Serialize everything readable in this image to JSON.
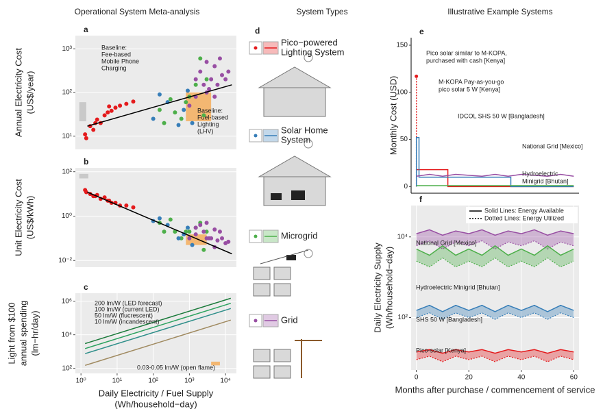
{
  "headers": [
    "Operational System Meta-analysis",
    "System Types",
    "Illustrative Example Systems"
  ],
  "system_types": {
    "panel": "d",
    "items": [
      {
        "label": [
          "Pico−powered",
          "Lighting System"
        ],
        "color": "#e41a1c"
      },
      {
        "label": [
          "Solar Home",
          "System"
        ],
        "color": "#377eb8"
      },
      {
        "label": [
          "Microgrid"
        ],
        "color": "#4daf4a"
      },
      {
        "label": [
          "Grid"
        ],
        "color": "#984ea3"
      }
    ]
  },
  "chart_data": [
    {
      "panel": "a",
      "type": "scatter",
      "ylabel": [
        "Annual Electricity Cost",
        "(US$/year)"
      ],
      "xscale": "log",
      "yscale": "log",
      "xlim": [
        0.7,
        20000
      ],
      "ylim": [
        5,
        2000
      ],
      "yticks": [
        {
          "value": 10,
          "label": "10¹"
        },
        {
          "value": 100,
          "label": "10²"
        },
        {
          "value": 1000,
          "label": "10³"
        }
      ],
      "grid": true,
      "background": "#ebebeb",
      "series": [
        {
          "color": "#e41a1c",
          "x": [
            1.3,
            1.4,
            1.8,
            2.2,
            2.8,
            3.5,
            4.5,
            5.5,
            7,
            9,
            12,
            18,
            28,
            2.5,
            6
          ],
          "values": [
            11,
            9,
            17,
            14,
            24,
            20,
            30,
            35,
            38,
            45,
            50,
            55,
            62,
            20,
            48
          ]
        },
        {
          "color": "#4daf4a",
          "x": [
            150,
            200,
            300,
            400,
            600,
            800,
            1000,
            1500,
            2000,
            3000,
            2500
          ],
          "values": [
            40,
            20,
            70,
            35,
            25,
            60,
            80,
            150,
            600,
            200,
            30
          ]
        },
        {
          "color": "#377eb8",
          "x": [
            100,
            150,
            250,
            500,
            700,
            1200,
            900
          ],
          "values": [
            25,
            90,
            60,
            18,
            40,
            20,
            110
          ]
        },
        {
          "color": "#984ea3",
          "x": [
            1000,
            1500,
            2000,
            2500,
            3000,
            3500,
            4000,
            5000,
            6000,
            7000,
            8000,
            10000,
            12000,
            3000,
            5000,
            1500
          ],
          "values": [
            50,
            80,
            300,
            150,
            500,
            120,
            200,
            400,
            150,
            600,
            250,
            200,
            300,
            100,
            80,
            200
          ]
        }
      ],
      "fit": {
        "color": "#000000",
        "x": [
          1.5,
          15000
        ],
        "values": [
          17,
          150
        ]
      },
      "regions": [
        {
          "color": "#bdbdbd",
          "x": [
            0.9,
            1.4
          ],
          "y": [
            22,
            60
          ]
        },
        {
          "color": "#f5a54a",
          "x": [
            800,
            4000
          ],
          "y": [
            22,
            100
          ]
        }
      ],
      "annotations": [
        {
          "color": "#000000",
          "lines": [
            "Baseline:",
            "Fee-based",
            "Mobile Phone",
            "Charging"
          ]
        },
        {
          "color": "#f08c1e",
          "lines": [
            "Baseline:",
            "Fuel-based",
            "Lighting",
            "(LHV)"
          ]
        }
      ]
    },
    {
      "panel": "b",
      "type": "scatter",
      "ylabel": [
        "Unit Electricity Cost",
        "(US$/kWh)"
      ],
      "xscale": "log",
      "yscale": "log",
      "xlim": [
        0.7,
        20000
      ],
      "ylim": [
        0.005,
        150
      ],
      "yticks": [
        {
          "value": 0.01,
          "label": "10⁻²"
        },
        {
          "value": 1,
          "label": "10⁰"
        },
        {
          "value": 100,
          "label": "10²"
        }
      ],
      "grid": true,
      "background": "#ebebeb",
      "series": [
        {
          "color": "#e41a1c",
          "x": [
            1.3,
            1.4,
            1.8,
            2.2,
            2.8,
            3.5,
            4.5,
            5.5,
            7,
            9,
            12,
            18,
            28,
            2.5,
            6
          ],
          "values": [
            15,
            12,
            10,
            8,
            9,
            6,
            7,
            5,
            4,
            4,
            3,
            3,
            2.5,
            8,
            5
          ]
        },
        {
          "color": "#4daf4a",
          "x": [
            150,
            200,
            300,
            400,
            600,
            800,
            1000,
            1500,
            2000,
            3000,
            2500
          ],
          "values": [
            0.5,
            0.2,
            0.7,
            0.2,
            0.1,
            0.2,
            0.2,
            0.3,
            0.5,
            0.2,
            0.03
          ]
        },
        {
          "color": "#377eb8",
          "x": [
            100,
            150,
            250,
            500,
            700,
            1200,
            900
          ],
          "values": [
            0.6,
            0.8,
            0.4,
            0.1,
            0.15,
            0.05,
            0.3
          ]
        },
        {
          "color": "#984ea3",
          "x": [
            1000,
            1500,
            2000,
            2500,
            3000,
            3500,
            4000,
            5000,
            6000,
            7000,
            8000,
            10000,
            12000,
            3000,
            5000,
            1500
          ],
          "values": [
            0.1,
            0.15,
            0.4,
            0.2,
            0.5,
            0.1,
            0.1,
            0.25,
            0.08,
            0.2,
            0.1,
            0.06,
            0.07,
            0.1,
            0.04,
            0.3
          ]
        }
      ],
      "fit": {
        "color": "#000000",
        "x": [
          1.5,
          15000
        ],
        "values": [
          12,
          0.02
        ]
      },
      "regions": [
        {
          "color": "#bdbdbd",
          "x": [
            0.9,
            1.6
          ],
          "y": [
            50,
            80
          ]
        },
        {
          "color": "#f5a54a",
          "x": [
            800,
            3000
          ],
          "y": [
            0.05,
            0.15
          ]
        }
      ]
    },
    {
      "panel": "c",
      "type": "line",
      "ylabel": [
        "Light from $100",
        "annual spending",
        "(lm−hr/day)"
      ],
      "xlabel": [
        "Daily Electricity / Fuel Supply",
        "(Wh/household−day)"
      ],
      "xscale": "log",
      "yscale": "log",
      "xlim": [
        0.7,
        20000
      ],
      "ylim": [
        50,
        3000000
      ],
      "xticks": [
        {
          "value": 1,
          "label": "10⁰"
        },
        {
          "value": 10,
          "label": "10¹"
        },
        {
          "value": 100,
          "label": "10²"
        },
        {
          "value": 1000,
          "label": "10³"
        },
        {
          "value": 10000,
          "label": "10⁴"
        }
      ],
      "yticks": [
        {
          "value": 100,
          "label": "10²"
        },
        {
          "value": 10000,
          "label": "10⁴"
        },
        {
          "value": 1000000,
          "label": "10⁶"
        }
      ],
      "grid": true,
      "background": "#ebebeb",
      "series": [
        {
          "name": "200 lm/W (LED forecast)",
          "color": "#1a7a3a",
          "x": [
            1.3,
            14000
          ],
          "values": [
            3000,
            1500000
          ]
        },
        {
          "name": "100 lm/W (current LED)",
          "color": "#2ca25f",
          "x": [
            1.3,
            14000
          ],
          "values": [
            1500,
            750000
          ]
        },
        {
          "name": "50 lm/W (flucrescent)",
          "color": "#2f8f8a",
          "x": [
            1.3,
            14000
          ],
          "values": [
            750,
            370000
          ]
        },
        {
          "name": "10 lm/W (incandescent)",
          "color": "#a08a60",
          "x": [
            1.3,
            14000
          ],
          "values": [
            150,
            75000
          ]
        }
      ],
      "regions": [
        {
          "color": "#f5a54a",
          "x": [
            4000,
            7000
          ],
          "y": [
            150,
            250
          ]
        }
      ],
      "annotations": [
        {
          "color": "#f08c1e",
          "lines": [
            "0.03-0.05 lm/W (open flame)"
          ]
        }
      ]
    },
    {
      "panel": "e",
      "type": "line",
      "ylabel": [
        "Monthly Cost (USD)"
      ],
      "xlim": [
        -2,
        62
      ],
      "ylim": [
        -7,
        158
      ],
      "yticks": [
        0,
        50,
        100,
        150
      ],
      "grid": false,
      "background": "#ffffff",
      "series": [
        {
          "label": [
            "Pico solar similar to M-KOPA,",
            "purchased with cash [Kenya]"
          ],
          "color": "#e41a1c",
          "dash": "dotted",
          "marker": "end",
          "x": [
            0,
            0
          ],
          "values": [
            0,
            117
          ]
        },
        {
          "label": [
            "M-KOPA Pay-as-you-go",
            "pico solar 5 W [Kenya]"
          ],
          "color": "#e41a1c",
          "x": [
            0,
            12,
            12,
            60
          ],
          "values": [
            18,
            18,
            0,
            0
          ]
        },
        {
          "label": [
            "IDCOL SHS  50 W [Bangladesh]"
          ],
          "color": "#377eb8",
          "x": [
            0,
            0,
            1,
            1,
            36,
            36,
            60
          ],
          "values": [
            0,
            52,
            52,
            10,
            10,
            0,
            0
          ]
        },
        {
          "label": [
            "National Grid [Mexico]"
          ],
          "color": "#984ea3",
          "x": [
            0,
            5,
            10,
            15,
            20,
            25,
            30,
            35,
            40,
            45,
            50,
            55,
            60
          ],
          "values": [
            11,
            13,
            11,
            13,
            12,
            11,
            13,
            11,
            13,
            12,
            11,
            13,
            11
          ]
        },
        {
          "label": [
            "Hydroelectric",
            "Minigrid [Bhutan]"
          ],
          "color": "#4daf4a",
          "x": [
            0,
            60
          ],
          "values": [
            1,
            1
          ]
        }
      ]
    },
    {
      "panel": "f",
      "type": "area",
      "ylabel": [
        "Daily Electricity Supply",
        "(Wh/household−day)"
      ],
      "xlabel": [
        "Months after purchase / commencement of service"
      ],
      "yscale": "log",
      "xlim": [
        -2,
        62
      ],
      "ylim": [
        5,
        60000
      ],
      "xticks": [
        0,
        20,
        40,
        60
      ],
      "yticks": [
        {
          "value": 100,
          "label": "10²"
        },
        {
          "value": 10000,
          "label": "10⁴"
        }
      ],
      "grid": true,
      "background": "#ebebeb",
      "legend": [
        "Solid Lines: Energy Available",
        "Dotted Lines: Energy Utilized"
      ],
      "x": [
        0,
        5,
        10,
        15,
        20,
        25,
        30,
        35,
        40,
        45,
        50,
        55,
        60
      ],
      "systems": [
        {
          "label": [
            "National Grid [Mexico]"
          ],
          "color": "#984ea3",
          "available": [
            12000,
            15000,
            11000,
            14000,
            12000,
            15000,
            11000,
            14000,
            12000,
            15000,
            11000,
            14000,
            12000
          ],
          "utilized": [
            6000,
            8000,
            5000,
            7500,
            6000,
            8000,
            5000,
            7500,
            6000,
            8000,
            5000,
            7500,
            6000
          ]
        },
        {
          "label": [
            "Hydroelectric Minigrid [Bhutan]"
          ],
          "color": "#4daf4a",
          "available": [
            5000,
            3500,
            6000,
            3500,
            5000,
            3500,
            6000,
            3500,
            5000,
            3500,
            6000,
            3500,
            5000
          ],
          "utilized": [
            2500,
            1800,
            3000,
            1800,
            2500,
            1800,
            3000,
            1800,
            2500,
            1800,
            3000,
            1800,
            2500
          ]
        },
        {
          "label": [
            "SHS  50 W [Bangladesh]"
          ],
          "color": "#377eb8",
          "available": [
            150,
            200,
            140,
            200,
            150,
            200,
            140,
            200,
            150,
            200,
            140,
            200,
            150
          ],
          "utilized": [
            100,
            130,
            90,
            130,
            100,
            130,
            90,
            130,
            100,
            130,
            90,
            130,
            100
          ]
        },
        {
          "label": [
            "Pico-solar [Kenya]"
          ],
          "color": "#e41a1c",
          "available": [
            14,
            16,
            13,
            16,
            14,
            16,
            13,
            16,
            14,
            16,
            13,
            16,
            14
          ],
          "utilized": [
            9,
            11,
            8,
            11,
            9,
            11,
            8,
            11,
            9,
            11,
            8,
            11,
            9
          ]
        }
      ]
    }
  ]
}
